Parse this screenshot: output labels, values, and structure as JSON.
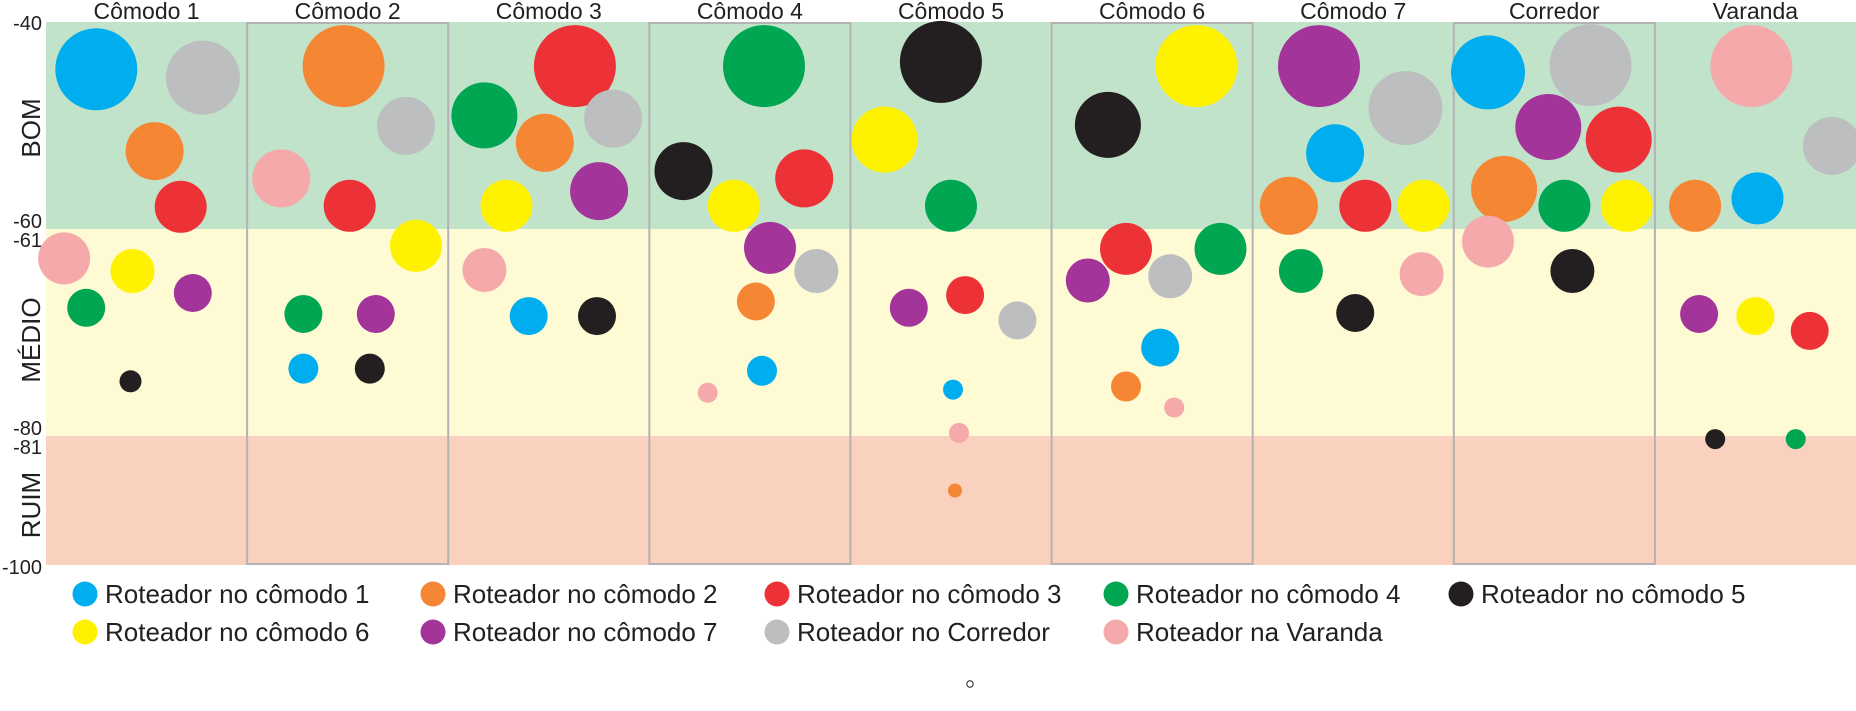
{
  "chart_data": {
    "type": "scatter",
    "title": "",
    "xlabel": "",
    "ylabel": "",
    "categories": [
      "Cômodo 1",
      "Cômodo 2",
      "Cômodo 3",
      "Cômodo 4",
      "Cômodo 5",
      "Cômodo 6",
      "Cômodo 7",
      "Corredor",
      "Varanda"
    ],
    "highlighted_categories": [
      "Cômodo 2",
      "Cômodo 4",
      "Cômodo 6",
      "Corredor"
    ],
    "ylim": [
      -100,
      -40
    ],
    "y_ticks": [
      "-40",
      "-60",
      "-61",
      "-80",
      "-81",
      "-100"
    ],
    "bands": [
      {
        "label": "BOM",
        "range": [
          -60,
          -40
        ],
        "color": "#c1e3ca"
      },
      {
        "label": "MÉDIO",
        "range": [
          -80,
          -61
        ],
        "color": "#fefad3"
      },
      {
        "label": "RUIM",
        "range": [
          -100,
          -81
        ],
        "color": "#fad0bf"
      }
    ],
    "series": [
      {
        "name": "Roteador no cômodo 1",
        "color": "#00aeef"
      },
      {
        "name": "Roteador no cômodo 2",
        "color": "#f58634"
      },
      {
        "name": "Roteador no cômodo 3",
        "color": "#ed3237"
      },
      {
        "name": "Roteador no cômodo 4",
        "color": "#00a651"
      },
      {
        "name": "Roteador no cômodo 5",
        "color": "#231f20"
      },
      {
        "name": "Roteador no cômodo 6",
        "color": "#fff200"
      },
      {
        "name": "Roteador no cômodo 7",
        "color": "#a3349a"
      },
      {
        "name": "Roteador no Corredor",
        "color": "#bcbec0"
      },
      {
        "name": "Roteador na Varanda",
        "color": "#f5a9ab"
      }
    ],
    "points": [
      {
        "c": 0,
        "s": 0,
        "x": 0.25,
        "y": -44.5,
        "size": 82
      },
      {
        "c": 0,
        "s": 7,
        "x": 0.78,
        "y": -45.3,
        "size": 74
      },
      {
        "c": 0,
        "s": 1,
        "x": 0.54,
        "y": -52.3,
        "size": 58
      },
      {
        "c": 0,
        "s": 2,
        "x": 0.67,
        "y": -57.6,
        "size": 52
      },
      {
        "c": 0,
        "s": 8,
        "x": 0.09,
        "y": -63.8,
        "size": 52
      },
      {
        "c": 0,
        "s": 5,
        "x": 0.43,
        "y": -65.0,
        "size": 44
      },
      {
        "c": 0,
        "s": 6,
        "x": 0.73,
        "y": -67.1,
        "size": 38
      },
      {
        "c": 0,
        "s": 3,
        "x": 0.2,
        "y": -68.5,
        "size": 38
      },
      {
        "c": 0,
        "s": 4,
        "x": 0.42,
        "y": -75.5,
        "size": 22
      },
      {
        "c": 1,
        "s": 1,
        "x": 0.48,
        "y": -44.2,
        "size": 82
      },
      {
        "c": 1,
        "s": 7,
        "x": 0.79,
        "y": -49.9,
        "size": 58
      },
      {
        "c": 1,
        "s": 8,
        "x": 0.17,
        "y": -54.9,
        "size": 58
      },
      {
        "c": 1,
        "s": 2,
        "x": 0.51,
        "y": -57.5,
        "size": 52
      },
      {
        "c": 1,
        "s": 5,
        "x": 0.84,
        "y": -62.6,
        "size": 52
      },
      {
        "c": 1,
        "s": 3,
        "x": 0.28,
        "y": -69.1,
        "size": 38
      },
      {
        "c": 1,
        "s": 6,
        "x": 0.64,
        "y": -69.1,
        "size": 38
      },
      {
        "c": 1,
        "s": 0,
        "x": 0.28,
        "y": -74.3,
        "size": 30
      },
      {
        "c": 1,
        "s": 4,
        "x": 0.61,
        "y": -74.3,
        "size": 30
      },
      {
        "c": 2,
        "s": 2,
        "x": 0.63,
        "y": -44.2,
        "size": 82
      },
      {
        "c": 2,
        "s": 3,
        "x": 0.18,
        "y": -48.9,
        "size": 66
      },
      {
        "c": 2,
        "s": 7,
        "x": 0.82,
        "y": -49.2,
        "size": 58
      },
      {
        "c": 2,
        "s": 1,
        "x": 0.48,
        "y": -51.5,
        "size": 58
      },
      {
        "c": 2,
        "s": 6,
        "x": 0.75,
        "y": -56.1,
        "size": 58
      },
      {
        "c": 2,
        "s": 5,
        "x": 0.29,
        "y": -57.5,
        "size": 52
      },
      {
        "c": 2,
        "s": 8,
        "x": 0.18,
        "y": -64.9,
        "size": 44
      },
      {
        "c": 2,
        "s": 0,
        "x": 0.4,
        "y": -69.3,
        "size": 38
      },
      {
        "c": 2,
        "s": 4,
        "x": 0.74,
        "y": -69.3,
        "size": 38
      },
      {
        "c": 3,
        "s": 3,
        "x": 0.57,
        "y": -44.2,
        "size": 82
      },
      {
        "c": 3,
        "s": 4,
        "x": 0.17,
        "y": -54.2,
        "size": 58
      },
      {
        "c": 3,
        "s": 2,
        "x": 0.77,
        "y": -54.9,
        "size": 58
      },
      {
        "c": 3,
        "s": 5,
        "x": 0.42,
        "y": -57.5,
        "size": 52
      },
      {
        "c": 3,
        "s": 6,
        "x": 0.6,
        "y": -62.8,
        "size": 52
      },
      {
        "c": 3,
        "s": 7,
        "x": 0.83,
        "y": -65.0,
        "size": 44
      },
      {
        "c": 3,
        "s": 1,
        "x": 0.53,
        "y": -67.9,
        "size": 38
      },
      {
        "c": 3,
        "s": 0,
        "x": 0.56,
        "y": -74.5,
        "size": 30
      },
      {
        "c": 3,
        "s": 8,
        "x": 0.29,
        "y": -76.6,
        "size": 20
      },
      {
        "c": 4,
        "s": 4,
        "x": 0.45,
        "y": -43.8,
        "size": 82
      },
      {
        "c": 4,
        "s": 5,
        "x": 0.17,
        "y": -51.2,
        "size": 66
      },
      {
        "c": 4,
        "s": 3,
        "x": 0.5,
        "y": -57.5,
        "size": 52
      },
      {
        "c": 4,
        "s": 2,
        "x": 0.57,
        "y": -67.3,
        "size": 38
      },
      {
        "c": 4,
        "s": 6,
        "x": 0.29,
        "y": -68.5,
        "size": 38
      },
      {
        "c": 4,
        "s": 7,
        "x": 0.83,
        "y": -69.7,
        "size": 38
      },
      {
        "c": 4,
        "s": 0,
        "x": 0.51,
        "y": -76.3,
        "size": 20
      },
      {
        "c": 4,
        "s": 8,
        "x": 0.54,
        "y": -80.7,
        "size": 20
      },
      {
        "c": 4,
        "s": 1,
        "x": 0.52,
        "y": -86.2,
        "size": 14
      },
      {
        "c": 5,
        "s": 5,
        "x": 0.72,
        "y": -44.2,
        "size": 82
      },
      {
        "c": 5,
        "s": 4,
        "x": 0.28,
        "y": -49.8,
        "size": 66
      },
      {
        "c": 5,
        "s": 2,
        "x": 0.37,
        "y": -62.9,
        "size": 52
      },
      {
        "c": 5,
        "s": 3,
        "x": 0.84,
        "y": -62.9,
        "size": 52
      },
      {
        "c": 5,
        "s": 6,
        "x": 0.18,
        "y": -65.9,
        "size": 44
      },
      {
        "c": 5,
        "s": 7,
        "x": 0.59,
        "y": -65.5,
        "size": 44
      },
      {
        "c": 5,
        "s": 0,
        "x": 0.54,
        "y": -72.3,
        "size": 38
      },
      {
        "c": 5,
        "s": 1,
        "x": 0.37,
        "y": -76.0,
        "size": 30
      },
      {
        "c": 5,
        "s": 8,
        "x": 0.61,
        "y": -78.0,
        "size": 20
      },
      {
        "c": 6,
        "s": 6,
        "x": 0.33,
        "y": -44.2,
        "size": 82
      },
      {
        "c": 6,
        "s": 7,
        "x": 0.76,
        "y": -48.2,
        "size": 74
      },
      {
        "c": 6,
        "s": 0,
        "x": 0.41,
        "y": -52.5,
        "size": 58
      },
      {
        "c": 6,
        "s": 1,
        "x": 0.18,
        "y": -57.5,
        "size": 58
      },
      {
        "c": 6,
        "s": 2,
        "x": 0.56,
        "y": -57.5,
        "size": 52
      },
      {
        "c": 6,
        "s": 5,
        "x": 0.85,
        "y": -57.5,
        "size": 52
      },
      {
        "c": 6,
        "s": 3,
        "x": 0.24,
        "y": -65.0,
        "size": 44
      },
      {
        "c": 6,
        "s": 8,
        "x": 0.84,
        "y": -65.3,
        "size": 44
      },
      {
        "c": 6,
        "s": 4,
        "x": 0.51,
        "y": -69.0,
        "size": 38
      },
      {
        "c": 7,
        "s": 0,
        "x": 0.17,
        "y": -44.8,
        "size": 74
      },
      {
        "c": 7,
        "s": 7,
        "x": 0.68,
        "y": -44.1,
        "size": 82
      },
      {
        "c": 7,
        "s": 6,
        "x": 0.47,
        "y": -50.0,
        "size": 66
      },
      {
        "c": 7,
        "s": 2,
        "x": 0.82,
        "y": -51.2,
        "size": 66
      },
      {
        "c": 7,
        "s": 1,
        "x": 0.25,
        "y": -55.9,
        "size": 66
      },
      {
        "c": 7,
        "s": 3,
        "x": 0.55,
        "y": -57.5,
        "size": 52
      },
      {
        "c": 7,
        "s": 5,
        "x": 0.86,
        "y": -57.5,
        "size": 52
      },
      {
        "c": 7,
        "s": 8,
        "x": 0.17,
        "y": -62.2,
        "size": 52
      },
      {
        "c": 7,
        "s": 4,
        "x": 0.59,
        "y": -65.0,
        "size": 44
      },
      {
        "c": 8,
        "s": 8,
        "x": 0.48,
        "y": -44.2,
        "size": 82
      },
      {
        "c": 8,
        "s": 7,
        "x": 0.88,
        "y": -51.8,
        "size": 58
      },
      {
        "c": 8,
        "s": 0,
        "x": 0.51,
        "y": -56.8,
        "size": 52
      },
      {
        "c": 8,
        "s": 1,
        "x": 0.2,
        "y": -57.5,
        "size": 52
      },
      {
        "c": 8,
        "s": 6,
        "x": 0.22,
        "y": -69.1,
        "size": 38
      },
      {
        "c": 8,
        "s": 5,
        "x": 0.5,
        "y": -69.3,
        "size": 38
      },
      {
        "c": 8,
        "s": 2,
        "x": 0.77,
        "y": -70.7,
        "size": 38
      },
      {
        "c": 8,
        "s": 4,
        "x": 0.3,
        "y": -81.3,
        "size": 20
      },
      {
        "c": 8,
        "s": 3,
        "x": 0.7,
        "y": -81.3,
        "size": 20
      }
    ]
  }
}
